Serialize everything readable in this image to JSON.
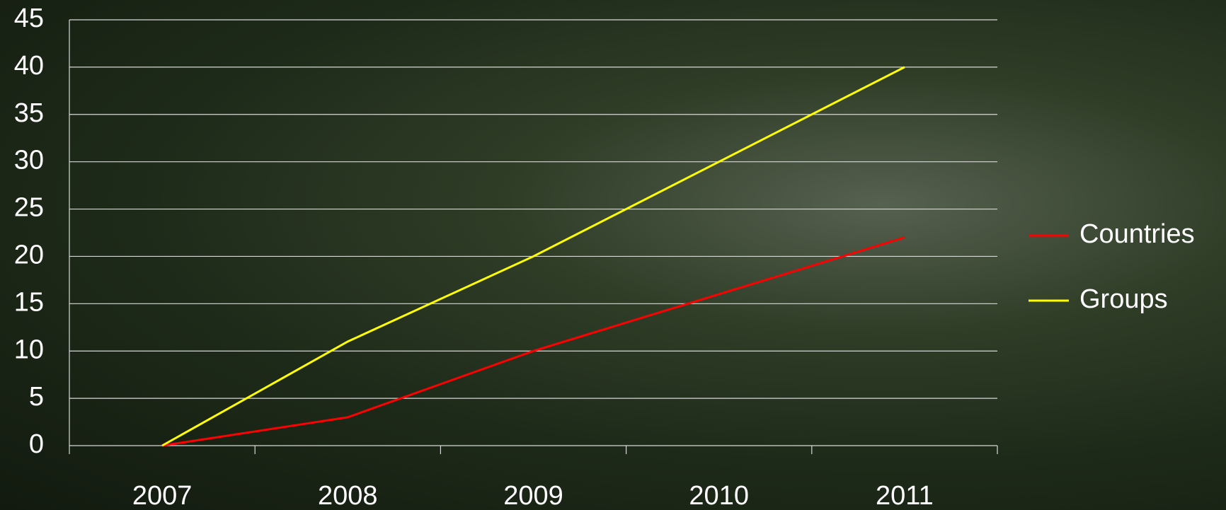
{
  "chart_data": {
    "type": "line",
    "categories": [
      "2007",
      "2008",
      "2009",
      "2010",
      "2011"
    ],
    "series": [
      {
        "name": "Countries",
        "color": "#ff0000",
        "values": [
          0,
          3,
          10,
          16,
          22
        ]
      },
      {
        "name": "Groups",
        "color": "#ffff00",
        "values": [
          0,
          11,
          20,
          30,
          40
        ]
      }
    ],
    "ylim": [
      0,
      45
    ],
    "yticks": [
      0,
      5,
      10,
      15,
      20,
      25,
      30,
      35,
      40,
      45
    ],
    "grid": true,
    "legend": "right"
  }
}
